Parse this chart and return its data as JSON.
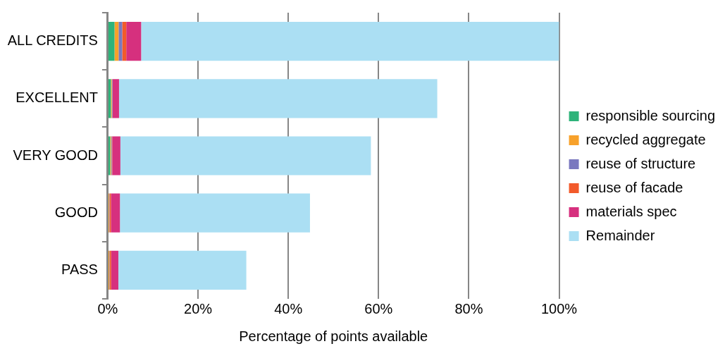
{
  "chart_data": {
    "type": "bar",
    "orientation": "horizontal",
    "stacked": true,
    "xlabel": "Percentage of points available",
    "categories": [
      "ALL CREDITS",
      "EXCELLENT",
      "VERY GOOD",
      "GOOD",
      "PASS"
    ],
    "series": [
      {
        "name": "responsible sourcing",
        "color": "#2eb37a",
        "values": [
          1.5,
          0.7,
          0.55,
          0,
          0
        ]
      },
      {
        "name": "recycled aggregate",
        "color": "#f7a12b",
        "values": [
          0.9,
          0.2,
          0.2,
          0.3,
          0.35
        ]
      },
      {
        "name": "reuse of structure",
        "color": "#7a78bf",
        "values": [
          0.8,
          0.15,
          0.15,
          0.1,
          0.1
        ]
      },
      {
        "name": "reuse of facade",
        "color": "#f25a2b",
        "values": [
          0.9,
          0.05,
          0.1,
          0.3,
          0.3
        ]
      },
      {
        "name": "materials spec",
        "color": "#d6307e",
        "values": [
          3.3,
          1.4,
          1.8,
          2.0,
          1.6
        ]
      },
      {
        "name": "Remainder",
        "color": "#abdff3",
        "values": [
          92.6,
          70.5,
          55.5,
          42.1,
          28.35
        ]
      }
    ],
    "xlim": [
      0,
      100
    ],
    "xticks": [
      {
        "value": 0,
        "label": "0%"
      },
      {
        "value": 20,
        "label": "20%"
      },
      {
        "value": 40,
        "label": "40%"
      },
      {
        "value": 60,
        "label": "60%"
      },
      {
        "value": 80,
        "label": "80%"
      },
      {
        "value": 100,
        "label": "100%"
      }
    ],
    "grid": "x",
    "legend": "right"
  }
}
